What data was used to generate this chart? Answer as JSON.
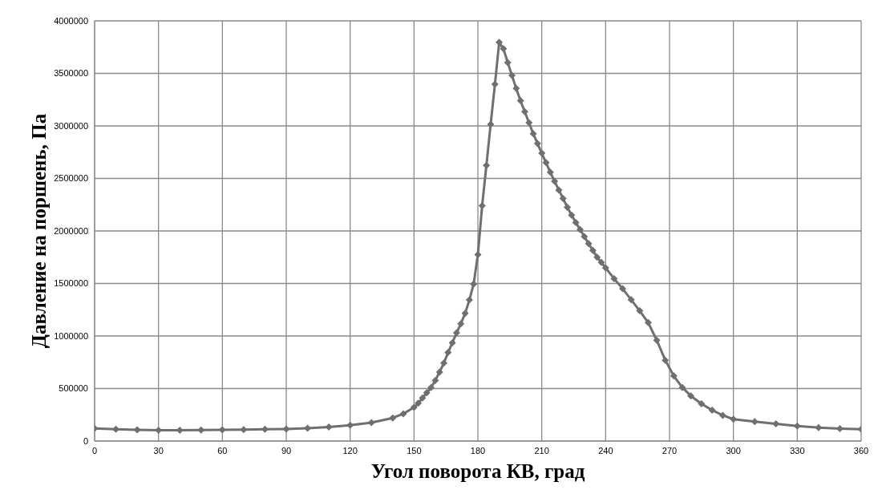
{
  "chart_data": {
    "type": "line",
    "xlabel": "Угол поворота КВ, град",
    "ylabel": "Давление на поршень, Па",
    "xlim": [
      0,
      360
    ],
    "xticks": [
      0,
      30,
      60,
      90,
      120,
      150,
      180,
      210,
      240,
      270,
      300,
      330,
      360
    ],
    "ylim": [
      0,
      4000000
    ],
    "yticks": [
      0,
      500000,
      1000000,
      1500000,
      2000000,
      2500000,
      3000000,
      3500000,
      4000000
    ],
    "grid": true,
    "marker": "diamond",
    "line_style": "solid",
    "series": [
      {
        "color": "#6f6f6f",
        "x": [
          0,
          10,
          20,
          30,
          40,
          50,
          60,
          70,
          80,
          90,
          100,
          110,
          120,
          130,
          140,
          145,
          150,
          152,
          154,
          156,
          158,
          160,
          162,
          164,
          166,
          168,
          170,
          172,
          174,
          176,
          178,
          180,
          182,
          184,
          186,
          188,
          190,
          192,
          194,
          196,
          198,
          200,
          202,
          204,
          206,
          208,
          210,
          212,
          214,
          216,
          218,
          220,
          222,
          224,
          226,
          228,
          230,
          232,
          234,
          236,
          238,
          240,
          244,
          248,
          252,
          256,
          260,
          264,
          268,
          272,
          276,
          280,
          285,
          290,
          295,
          300,
          310,
          320,
          330,
          340,
          350,
          360
        ],
        "values": [
          120000,
          112000,
          106000,
          103000,
          103000,
          105000,
          107000,
          109000,
          112000,
          115000,
          122000,
          133000,
          150000,
          175000,
          220000,
          260000,
          320000,
          360000,
          410000,
          460000,
          510000,
          577000,
          657000,
          742000,
          843000,
          936000,
          1030000,
          1117000,
          1215000,
          1343000,
          1495000,
          1774000,
          2240000,
          2625000,
          3016000,
          3396000,
          3795000,
          3734000,
          3604000,
          3480000,
          3356000,
          3240000,
          3136000,
          3030000,
          2926000,
          2832000,
          2740000,
          2650000,
          2560000,
          2473000,
          2390000,
          2310000,
          2226000,
          2150000,
          2080000,
          2013000,
          1947000,
          1880000,
          1814000,
          1750000,
          1700000,
          1649000,
          1545000,
          1450000,
          1345000,
          1240000,
          1127000,
          960000,
          770000,
          620000,
          510000,
          430000,
          355000,
          294000,
          245000,
          208000,
          185000,
          165000,
          143000,
          128000,
          118000,
          112000
        ]
      }
    ]
  }
}
